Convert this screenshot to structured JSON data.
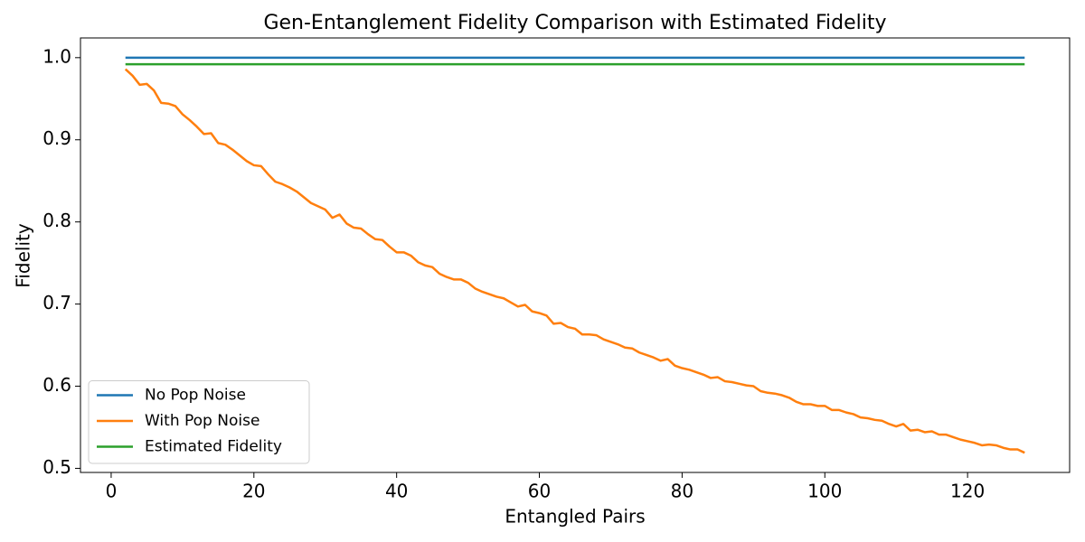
{
  "chart_data": {
    "type": "line",
    "title": "Gen-Entanglement Fidelity Comparison with Estimated Fidelity",
    "xlabel": "Entangled Pairs",
    "ylabel": "Fidelity",
    "x": [
      2,
      3,
      4,
      5,
      6,
      7,
      8,
      9,
      10,
      11,
      12,
      13,
      14,
      15,
      16,
      17,
      18,
      19,
      20,
      21,
      22,
      23,
      24,
      25,
      26,
      27,
      28,
      29,
      30,
      31,
      32,
      33,
      34,
      35,
      36,
      37,
      38,
      39,
      40,
      41,
      42,
      43,
      44,
      45,
      46,
      47,
      48,
      49,
      50,
      51,
      52,
      53,
      54,
      55,
      56,
      57,
      58,
      59,
      60,
      61,
      62,
      63,
      64,
      65,
      66,
      67,
      68,
      69,
      70,
      71,
      72,
      73,
      74,
      75,
      76,
      77,
      78,
      79,
      80,
      81,
      82,
      83,
      84,
      85,
      86,
      87,
      88,
      89,
      90,
      91,
      92,
      93,
      94,
      95,
      96,
      97,
      98,
      99,
      100,
      101,
      102,
      103,
      104,
      105,
      106,
      107,
      108,
      109,
      110,
      111,
      112,
      113,
      114,
      115,
      116,
      117,
      118,
      119,
      120,
      121,
      122,
      123,
      124,
      125,
      126,
      127,
      128
    ],
    "series": [
      {
        "name": "No Pop Noise",
        "color": "#1f77b4",
        "values": [
          1,
          1,
          1,
          1,
          1,
          1,
          1,
          1,
          1,
          1,
          1,
          1,
          1,
          1,
          1,
          1,
          1,
          1,
          1,
          1,
          1,
          1,
          1,
          1,
          1,
          1,
          1,
          1,
          1,
          1,
          1,
          1,
          1,
          1,
          1,
          1,
          1,
          1,
          1,
          1,
          1,
          1,
          1,
          1,
          1,
          1,
          1,
          1,
          1,
          1,
          1,
          1,
          1,
          1,
          1,
          1,
          1,
          1,
          1,
          1,
          1,
          1,
          1,
          1,
          1,
          1,
          1,
          1,
          1,
          1,
          1,
          1,
          1,
          1,
          1,
          1,
          1,
          1,
          1,
          1,
          1,
          1,
          1,
          1,
          1,
          1,
          1,
          1,
          1,
          1,
          1,
          1,
          1,
          1,
          1,
          1,
          1,
          1,
          1,
          1,
          1,
          1,
          1,
          1,
          1,
          1,
          1,
          1,
          1,
          1,
          1,
          1,
          1,
          1,
          1,
          1,
          1,
          1,
          1,
          1,
          1,
          1,
          1,
          1,
          1,
          1,
          1
        ]
      },
      {
        "name": "With Pop Noise",
        "color": "#ff7f0e",
        "values": [
          0.986,
          0.978,
          0.967,
          0.968,
          0.96,
          0.945,
          0.944,
          0.941,
          0.931,
          0.924,
          0.916,
          0.907,
          0.908,
          0.896,
          0.894,
          0.888,
          0.881,
          0.874,
          0.869,
          0.868,
          0.858,
          0.849,
          0.846,
          0.842,
          0.837,
          0.83,
          0.823,
          0.819,
          0.815,
          0.805,
          0.809,
          0.798,
          0.793,
          0.792,
          0.785,
          0.779,
          0.778,
          0.77,
          0.763,
          0.763,
          0.759,
          0.751,
          0.747,
          0.745,
          0.737,
          0.733,
          0.73,
          0.73,
          0.726,
          0.719,
          0.715,
          0.712,
          0.709,
          0.707,
          0.702,
          0.697,
          0.699,
          0.691,
          0.689,
          0.686,
          0.676,
          0.677,
          0.672,
          0.67,
          0.663,
          0.663,
          0.662,
          0.657,
          0.654,
          0.651,
          0.647,
          0.646,
          0.641,
          0.638,
          0.635,
          0.631,
          0.633,
          0.625,
          0.622,
          0.62,
          0.617,
          0.614,
          0.61,
          0.611,
          0.606,
          0.605,
          0.603,
          0.601,
          0.6,
          0.594,
          0.592,
          0.591,
          0.589,
          0.586,
          0.581,
          0.578,
          0.578,
          0.576,
          0.576,
          0.571,
          0.571,
          0.568,
          0.566,
          0.562,
          0.561,
          0.559,
          0.558,
          0.554,
          0.551,
          0.554,
          0.546,
          0.547,
          0.544,
          0.545,
          0.541,
          0.541,
          0.538,
          0.535,
          0.533,
          0.531,
          0.528,
          0.529,
          0.528,
          0.525,
          0.523,
          0.523,
          0.519
        ]
      },
      {
        "name": "Estimated Fidelity",
        "color": "#2ca02c",
        "values": [
          0.992,
          0.992,
          0.992,
          0.992,
          0.992,
          0.992,
          0.992,
          0.992,
          0.992,
          0.992,
          0.992,
          0.992,
          0.992,
          0.992,
          0.992,
          0.992,
          0.992,
          0.992,
          0.992,
          0.992,
          0.992,
          0.992,
          0.992,
          0.992,
          0.992,
          0.992,
          0.992,
          0.992,
          0.992,
          0.992,
          0.992,
          0.992,
          0.992,
          0.992,
          0.992,
          0.992,
          0.992,
          0.992,
          0.992,
          0.992,
          0.992,
          0.992,
          0.992,
          0.992,
          0.992,
          0.992,
          0.992,
          0.992,
          0.992,
          0.992,
          0.992,
          0.992,
          0.992,
          0.992,
          0.992,
          0.992,
          0.992,
          0.992,
          0.992,
          0.992,
          0.992,
          0.992,
          0.992,
          0.992,
          0.992,
          0.992,
          0.992,
          0.992,
          0.992,
          0.992,
          0.992,
          0.992,
          0.992,
          0.992,
          0.992,
          0.992,
          0.992,
          0.992,
          0.992,
          0.992,
          0.992,
          0.992,
          0.992,
          0.992,
          0.992,
          0.992,
          0.992,
          0.992,
          0.992,
          0.992,
          0.992,
          0.992,
          0.992,
          0.992,
          0.992,
          0.992,
          0.992,
          0.992,
          0.992,
          0.992,
          0.992,
          0.992,
          0.992,
          0.992,
          0.992,
          0.992,
          0.992,
          0.992,
          0.992,
          0.992,
          0.992,
          0.992,
          0.992,
          0.992,
          0.992,
          0.992,
          0.992,
          0.992,
          0.992,
          0.992,
          0.992,
          0.992,
          0.992,
          0.992,
          0.992,
          0.992,
          0.992
        ]
      }
    ],
    "xlim": [
      -4.3,
      134.3
    ],
    "xticks": [
      0,
      20,
      40,
      60,
      80,
      100,
      120
    ],
    "ylim": [
      0.495,
      1.024
    ],
    "yticks": [
      0.5,
      0.6,
      0.7,
      0.8,
      0.9,
      {
        "value": 1,
        "label": "1.0"
      }
    ],
    "legend": "lower left",
    "grid": false
  }
}
